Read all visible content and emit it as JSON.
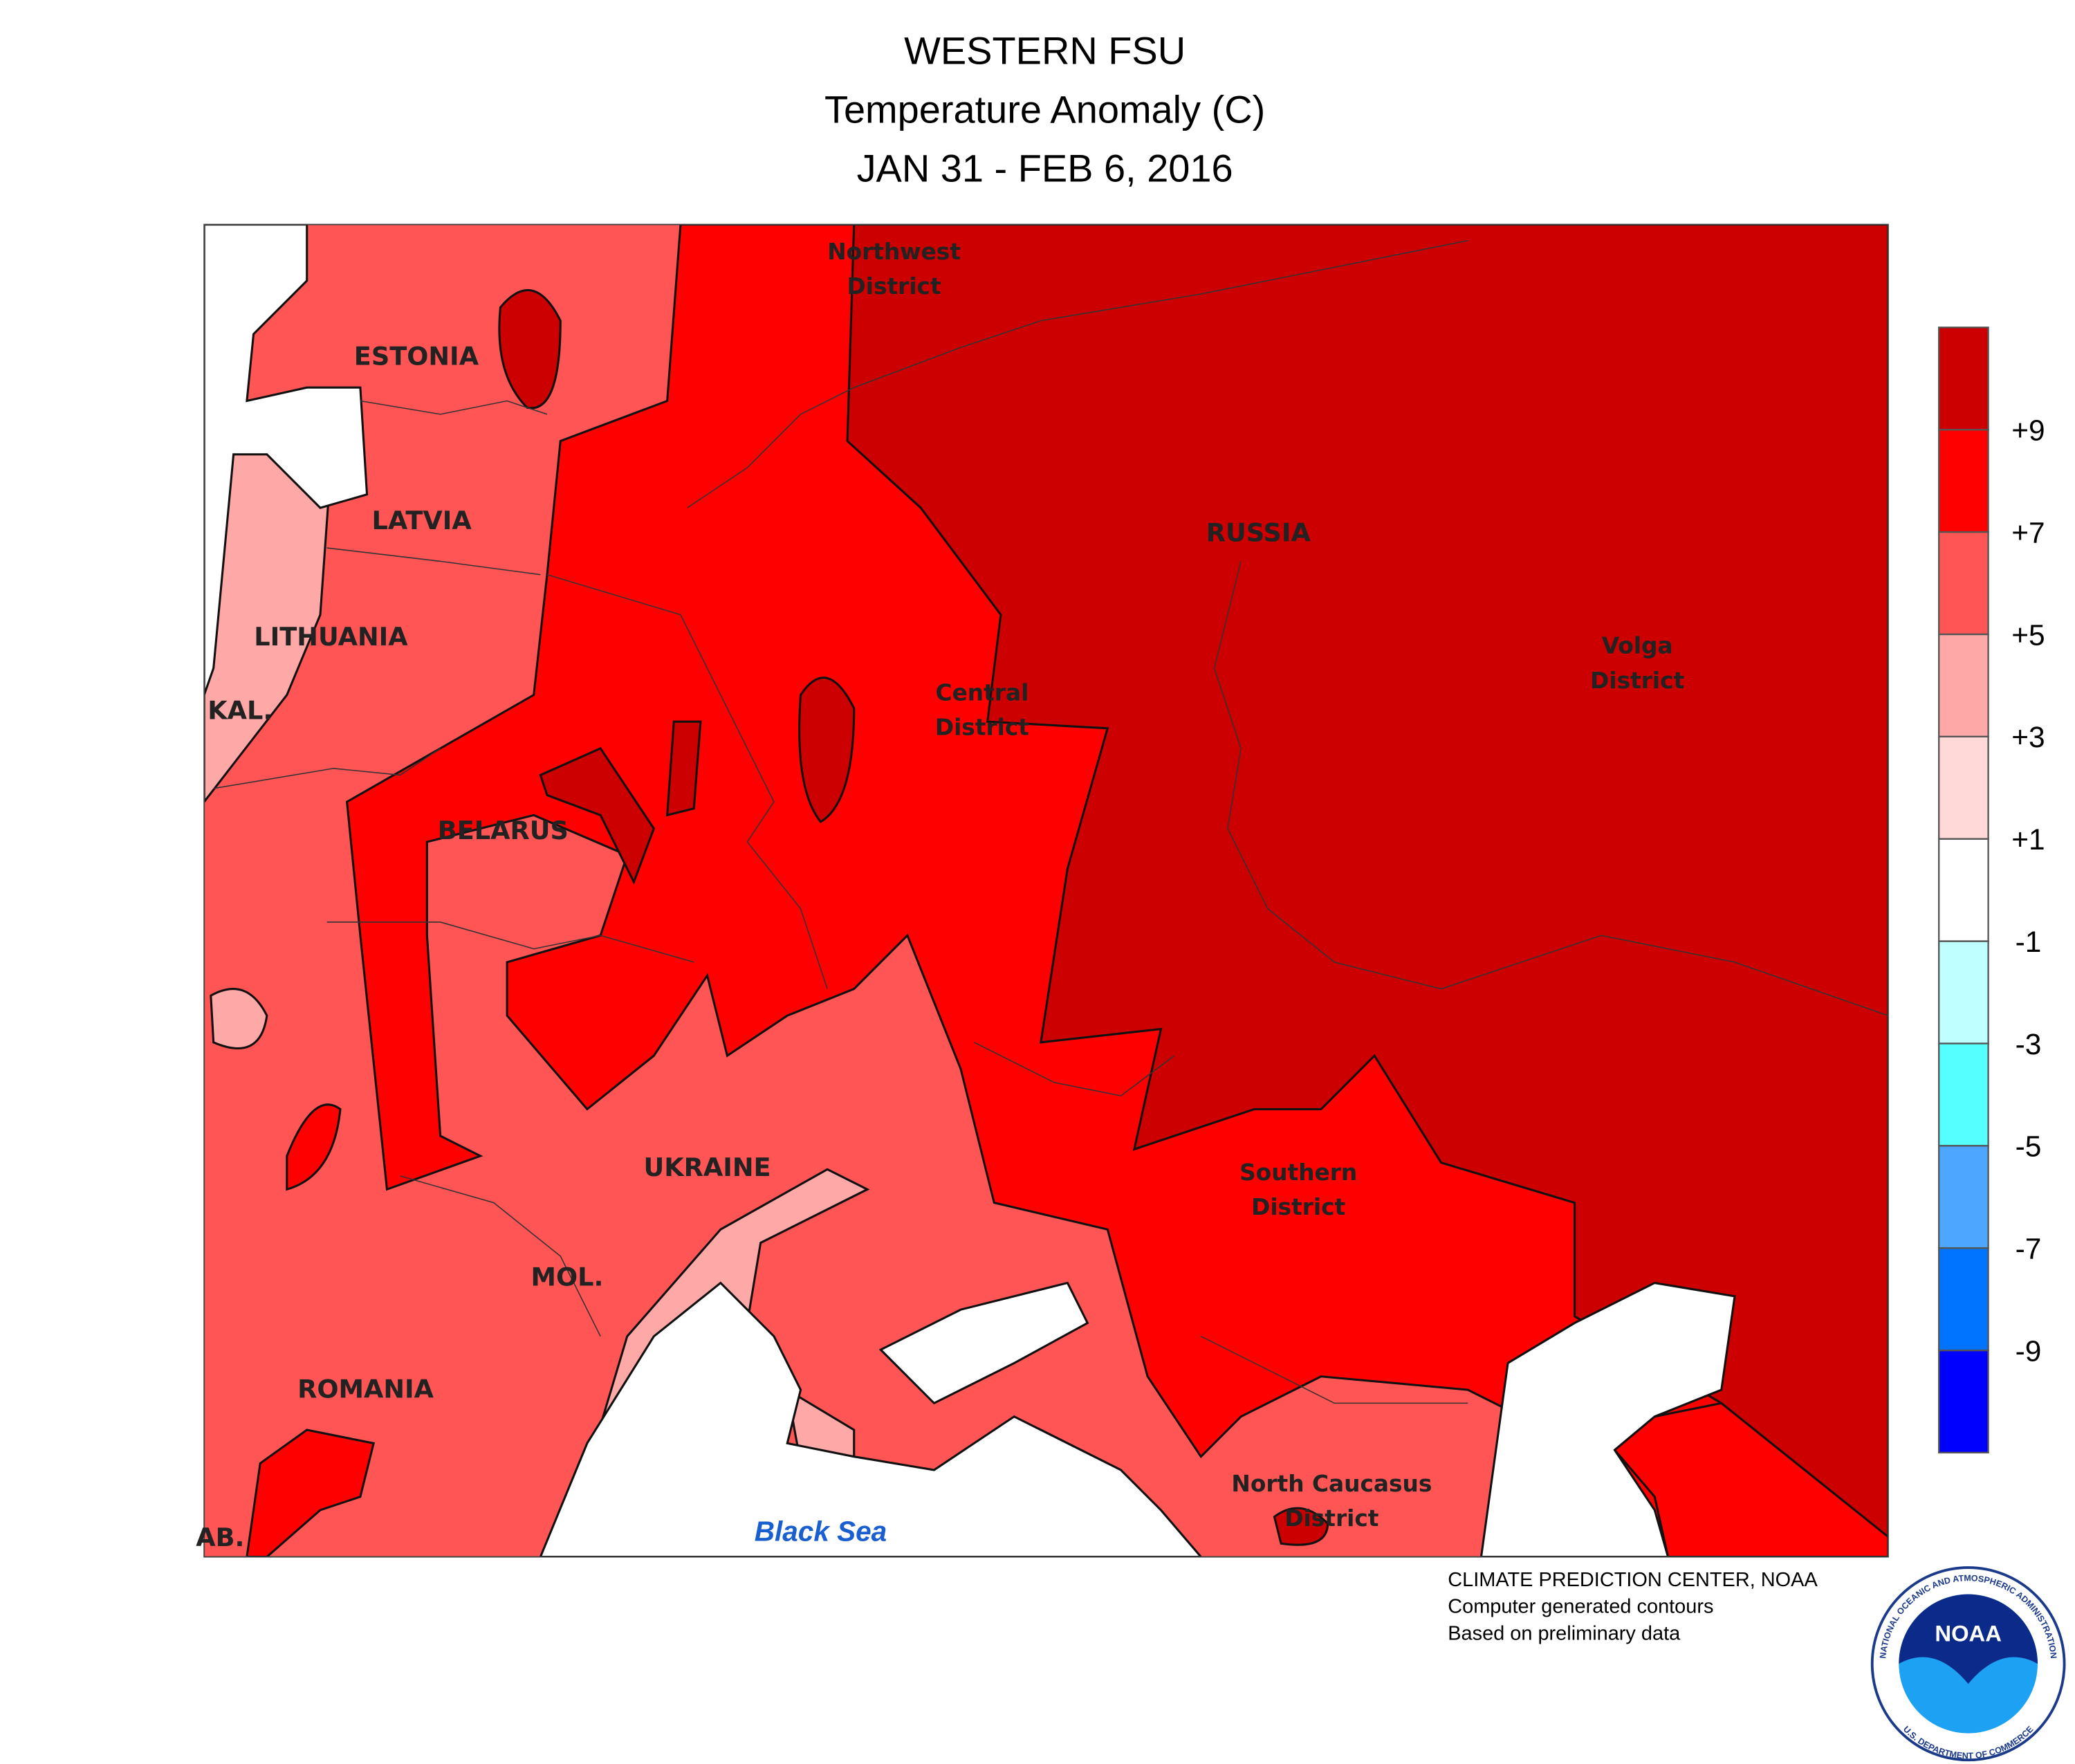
{
  "header": {
    "title": "WESTERN FSU",
    "subtitle": "Temperature Anomaly (C)",
    "dates": "JAN 31 - FEB 6, 2016"
  },
  "map": {
    "countries": [
      "ESTONIA",
      "LATVIA",
      "LITHUANIA",
      "KAL.",
      "BELARUS",
      "UKRAINE",
      "MOL.",
      "ROMANIA",
      "AB.",
      "RUSSIA"
    ],
    "districts": [
      [
        "Northwest",
        "District"
      ],
      [
        "Central",
        "District"
      ],
      [
        "Volga",
        "District"
      ],
      [
        "Southern",
        "District"
      ],
      [
        "North Caucasus",
        "District"
      ]
    ],
    "sea": "Black Sea"
  },
  "legend": {
    "colors": [
      "#0000ff",
      "#0073ff",
      "#4da6ff",
      "#55ffff",
      "#c0ffff",
      "#ffffff",
      "#ffd8d8",
      "#ffa8a8",
      "#ff5555",
      "#ff0000",
      "#cc0000"
    ],
    "labels": [
      "-9",
      "-7",
      "-5",
      "-3",
      "-1",
      "+1",
      "+3",
      "+5",
      "+7",
      "+9"
    ]
  },
  "footer": {
    "lines": [
      "CLIMATE PREDICTION CENTER, NOAA",
      "Computer generated contours",
      "Based on preliminary data"
    ]
  },
  "logo": {
    "text": "NOAA",
    "ring_top": "NATIONAL OCEANIC AND ATMOSPHERIC ADMINISTRATION",
    "ring_bottom": "U.S. DEPARTMENT OF COMMERCE"
  }
}
